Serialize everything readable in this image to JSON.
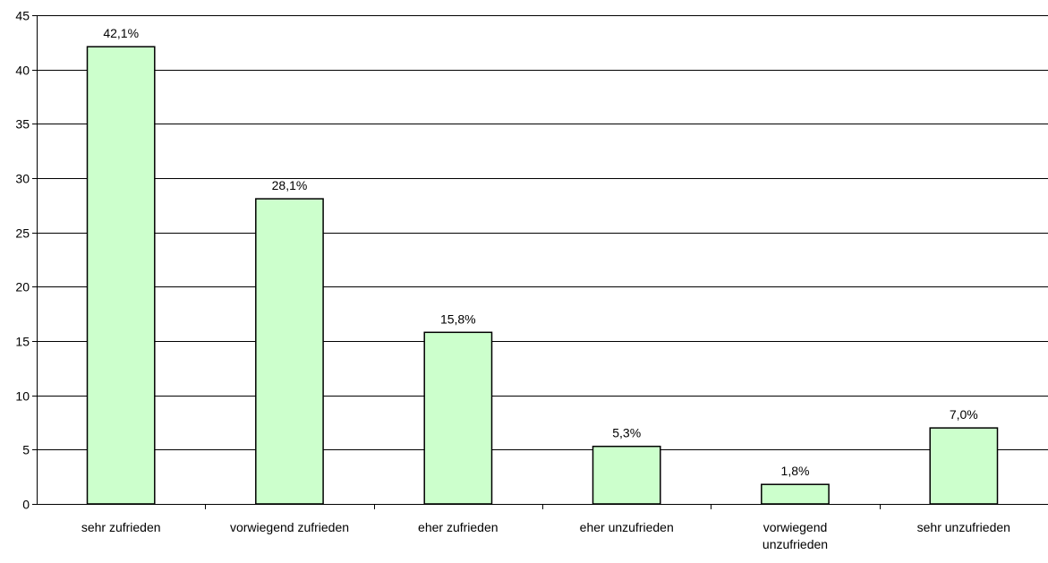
{
  "chart_data": {
    "type": "bar",
    "title": "",
    "xlabel": "",
    "ylabel": "",
    "categories": [
      [
        "sehr zufrieden"
      ],
      [
        "vorwiegend zufrieden"
      ],
      [
        "eher zufrieden"
      ],
      [
        "eher unzufrieden"
      ],
      [
        "vorwiegend",
        "unzufrieden"
      ],
      [
        "sehr unzufrieden"
      ]
    ],
    "values": [
      42.1,
      28.1,
      15.8,
      5.3,
      1.8,
      7.0
    ],
    "data_labels": [
      "42,1%",
      "28,1%",
      "15,8%",
      "5,3%",
      "1,8%",
      "7,0%"
    ],
    "ylim": [
      0,
      45
    ],
    "yticks": [
      0,
      5,
      10,
      15,
      20,
      25,
      30,
      35,
      40,
      45
    ],
    "grid": true,
    "legend": "none",
    "colors": {
      "bar_fill": "#ccffcc",
      "bar_stroke": "#000000",
      "grid": "#000000",
      "axis": "#000000",
      "background": "#ffffff"
    }
  }
}
